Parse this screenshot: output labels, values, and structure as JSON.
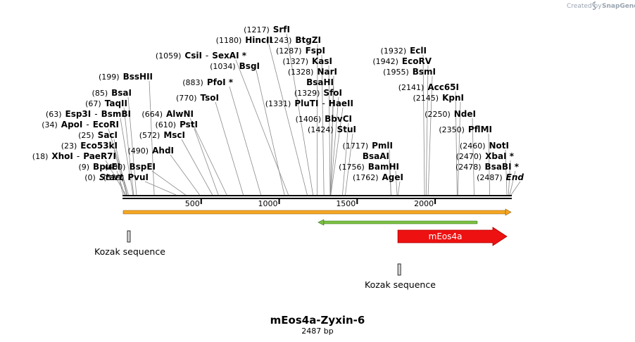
{
  "credit": "Created by",
  "credit_brand": "SnapGene",
  "map": {
    "title": "mEos4a-Zyxin-6",
    "length_label": "2487 bp",
    "length": 2487,
    "ticks": [
      {
        "value": 500,
        "label": "500"
      },
      {
        "value": 1000,
        "label": "1000"
      },
      {
        "value": 1500,
        "label": "1500"
      },
      {
        "value": 2000,
        "label": "2000"
      }
    ]
  },
  "sites": [
    {
      "pos": 0,
      "label": "(0)",
      "name": "Start",
      "style": "italic"
    },
    {
      "pos": 9,
      "label": "(9)",
      "name": "BpuEI"
    },
    {
      "pos": 18,
      "label": "(18)",
      "name": "XhoI",
      "name2": "PaeR7I"
    },
    {
      "pos": 23,
      "label": "(23)",
      "name": "Eco53kI"
    },
    {
      "pos": 25,
      "label": "(25)",
      "name": "SacI"
    },
    {
      "pos": 34,
      "label": "(34)",
      "name": "ApoI",
      "name2": "EcoRI"
    },
    {
      "pos": 63,
      "label": "(63)",
      "name": "Esp3I",
      "name2": "BsmBI"
    },
    {
      "pos": 67,
      "label": "(67)",
      "name": "TaqII"
    },
    {
      "pos": 85,
      "label": "(85)",
      "name": "BsaI"
    },
    {
      "pos": 199,
      "label": "(199)",
      "name": "BssHII"
    },
    {
      "pos": 339,
      "label": "(339)",
      "name": "PvuI"
    },
    {
      "pos": 400,
      "label": "(400)",
      "name": "BspEI"
    },
    {
      "pos": 490,
      "label": "(490)",
      "name": "AhdI"
    },
    {
      "pos": 572,
      "label": "(572)",
      "name": "MscI"
    },
    {
      "pos": 610,
      "label": "(610)",
      "name": "PstI"
    },
    {
      "pos": 664,
      "label": "(664)",
      "name": "AlwNI"
    },
    {
      "pos": 770,
      "label": "(770)",
      "name": "TsoI"
    },
    {
      "pos": 883,
      "label": "(883)",
      "name": "PfoI *"
    },
    {
      "pos": 1034,
      "label": "(1034)",
      "name": "BsgI"
    },
    {
      "pos": 1059,
      "label": "(1059)",
      "name": "CsiI",
      "name2": "SexAI *"
    },
    {
      "pos": 1180,
      "label": "(1180)",
      "name": "HincII"
    },
    {
      "pos": 1217,
      "label": "(1217)",
      "name": "SrfI"
    },
    {
      "pos": 1243,
      "label": "(1243)",
      "name": "BtgZI"
    },
    {
      "pos": 1287,
      "label": "(1287)",
      "name": "FspI"
    },
    {
      "pos": 1327,
      "label": "(1327)",
      "name": "KasI"
    },
    {
      "pos": 1328,
      "label": "(1328)",
      "name": "NarI"
    },
    {
      "pos": 1329,
      "label": "",
      "name": "BsaHI"
    },
    {
      "pos": 1329,
      "label": "(1329)",
      "name": "SfoI"
    },
    {
      "pos": 1331,
      "label": "(1331)",
      "name": "PluTI",
      "name2": "HaeII"
    },
    {
      "pos": 1406,
      "label": "(1406)",
      "name": "BbvCI"
    },
    {
      "pos": 1424,
      "label": "(1424)",
      "name": "StuI"
    },
    {
      "pos": 1717,
      "label": "(1717)",
      "name": "PmlI"
    },
    {
      "pos": 1717,
      "label": "",
      "name": "BsaAI"
    },
    {
      "pos": 1756,
      "label": "(1756)",
      "name": "BamHI"
    },
    {
      "pos": 1762,
      "label": "(1762)",
      "name": "AgeI"
    },
    {
      "pos": 1932,
      "label": "(1932)",
      "name": "EclI"
    },
    {
      "pos": 1942,
      "label": "(1942)",
      "name": "EcoRV"
    },
    {
      "pos": 1955,
      "label": "(1955)",
      "name": "BsmI"
    },
    {
      "pos": 2141,
      "label": "(2141)",
      "name": "Acc65I"
    },
    {
      "pos": 2145,
      "label": "(2145)",
      "name": "KpnI"
    },
    {
      "pos": 2250,
      "label": "(2250)",
      "name": "NdeI"
    },
    {
      "pos": 2350,
      "label": "(2350)",
      "name": "PflMI"
    },
    {
      "pos": 2460,
      "label": "(2460)",
      "name": "NotI"
    },
    {
      "pos": 2470,
      "label": "(2470)",
      "name": "XbaI *"
    },
    {
      "pos": 2478,
      "label": "(2478)",
      "name": "BsaBI *"
    },
    {
      "pos": 2487,
      "label": "(2487)",
      "name": "End",
      "style": "italic"
    }
  ],
  "features": {
    "kozak1": {
      "label": "Kozak sequence",
      "pos": 36
    },
    "kozak2": {
      "label": "Kozak sequence",
      "pos": 1770
    },
    "meos4a": {
      "label": "mEos4a",
      "start": 1770,
      "end": 2487
    },
    "orange_orf": {
      "start": 0,
      "end": 2487
    },
    "green_orf": {
      "start": 1250,
      "end": 2270
    }
  },
  "colors": {
    "backbone": "#000000",
    "orange": "#f5a623",
    "orange_edge": "#8a5a00",
    "green": "#7cc242",
    "green_edge": "#2d6a14",
    "meos4a": "#ee1111",
    "kozak_fill": "#d9d9d9"
  }
}
